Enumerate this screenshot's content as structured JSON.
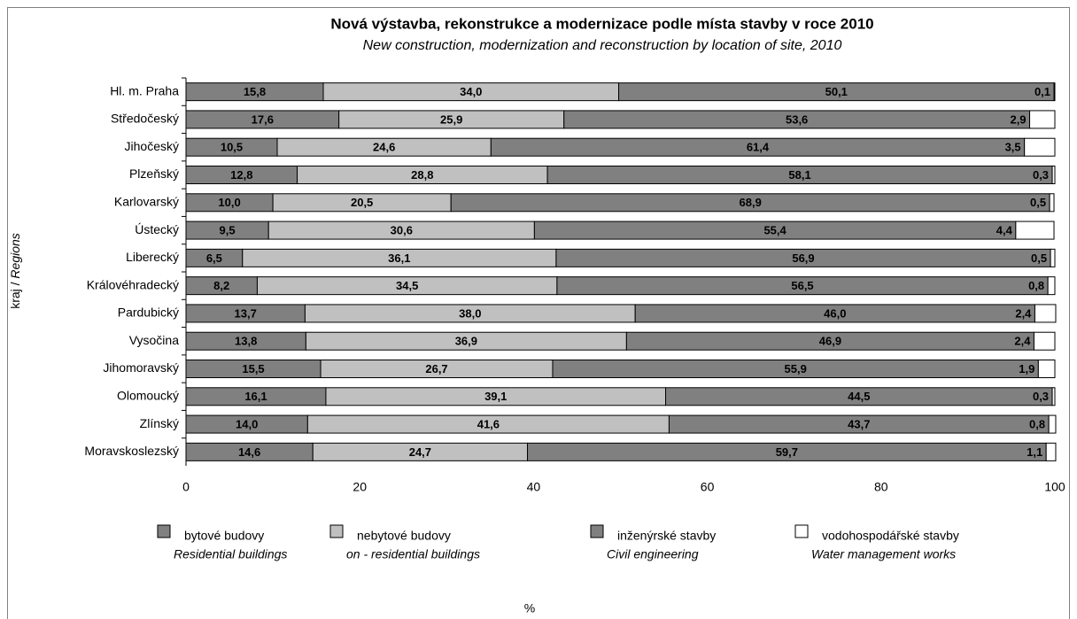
{
  "chart_data": {
    "type": "stacked-bar-horizontal",
    "title": "Nová výstavba, rekonstrukce a modernizace podle místa stavby v roce 2010",
    "subtitle": "New construction, modernization and reconstruction by location of site, 2010",
    "y_label": "kraj /",
    "y_label_en": "Regions",
    "x_label": "%",
    "categories": [
      "Hl. m. Praha",
      "Středočeský",
      "Jihočeský",
      "Plzeňský",
      "Karlovarský",
      "Ústecký",
      "Liberecký",
      "Královéhradecký",
      "Pardubický",
      "Vysočina",
      "Jihomoravský",
      "Olomoucký",
      "Zlínský",
      "Moravskoslezský"
    ],
    "series": [
      {
        "name": "bytové budovy",
        "name_en": "Residential buildings",
        "color": "#808080",
        "label_color": "#000000",
        "values": [
          15.8,
          17.6,
          10.5,
          12.8,
          10.0,
          9.5,
          6.5,
          8.2,
          13.7,
          13.8,
          15.5,
          16.1,
          14.0,
          14.6
        ],
        "value_labels": [
          "15,8",
          "17,6",
          "10,5",
          "12,8",
          "10,0",
          "9,5",
          "6,5",
          "8,2",
          "13,7",
          "13,8",
          "15,5",
          "16,1",
          "14,0",
          "14,6"
        ]
      },
      {
        "name": "nebytové budovy",
        "name_en": "on - residential buildings",
        "color": "#c0c0c0",
        "label_color": "#000000",
        "values": [
          34.0,
          25.9,
          24.6,
          28.8,
          20.5,
          30.6,
          36.1,
          34.5,
          38.0,
          36.9,
          26.7,
          39.1,
          41.6,
          24.7
        ],
        "value_labels": [
          "34,0",
          "25,9",
          "24,6",
          "28,8",
          "20,5",
          "30,6",
          "36,1",
          "34,5",
          "38,0",
          "36,9",
          "26,7",
          "39,1",
          "41,6",
          "24,7"
        ]
      },
      {
        "name": "inženýrské stavby",
        "name_en": "Civil engineering",
        "color": "#808080",
        "label_color": "#ffffff",
        "values": [
          50.1,
          53.6,
          61.4,
          58.1,
          68.9,
          55.4,
          56.9,
          56.5,
          46.0,
          46.9,
          55.9,
          44.5,
          43.7,
          59.7
        ],
        "value_labels": [
          "50,1",
          "53,6",
          "61,4",
          "58,1",
          "68,9",
          "55,4",
          "56,9",
          "56,5",
          "46,0",
          "46,9",
          "55,9",
          "44,5",
          "43,7",
          "59,7"
        ]
      },
      {
        "name": "vodohospodářské stavby",
        "name_en": "Water management works",
        "color": "#ffffff",
        "label_color": "#ffffff",
        "values": [
          0.1,
          2.9,
          3.5,
          0.3,
          0.5,
          4.4,
          0.5,
          0.8,
          2.4,
          2.4,
          1.9,
          0.3,
          0.8,
          1.1
        ],
        "value_labels": [
          "0,1",
          "2,9",
          "3,5",
          "0,3",
          "0,5",
          "4,4",
          "0,5",
          "0,8",
          "2,4",
          "2,4",
          "1,9",
          "0,3",
          "0,8",
          "1,1"
        ]
      }
    ],
    "xlim": [
      0,
      100
    ],
    "xticks": [
      0,
      20,
      40,
      60,
      80,
      100
    ],
    "grid": false
  }
}
